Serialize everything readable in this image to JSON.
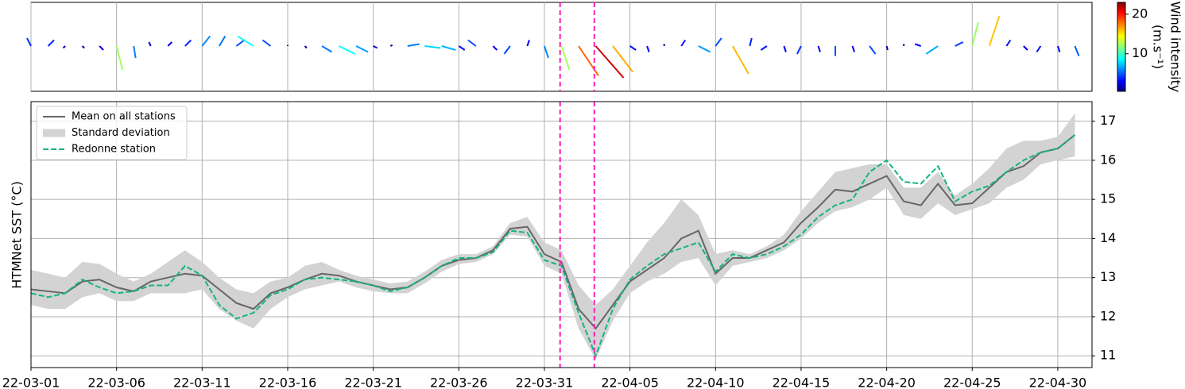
{
  "chart_data": [
    {
      "type": "quiver",
      "colorbar_label": [
        "Wind intensity",
        "(m.s⁻¹)"
      ],
      "colormap": "jet",
      "clim": [
        0.5,
        23
      ],
      "cticks": [
        10,
        20
      ],
      "xlim": [
        "22-03-01",
        "22-05-02"
      ],
      "grid": true,
      "x": [
        "22-03-01",
        "22-03-02",
        "22-03-03",
        "22-03-04",
        "22-03-05",
        "22-03-06",
        "22-03-07",
        "22-03-08",
        "22-03-09",
        "22-03-10",
        "22-03-11",
        "22-03-12",
        "22-03-13",
        "22-03-14",
        "22-03-15",
        "22-03-16",
        "22-03-17",
        "22-03-18",
        "22-03-19",
        "22-03-20",
        "22-03-21",
        "22-03-22",
        "22-03-23",
        "22-03-24",
        "22-03-25",
        "22-03-26",
        "22-03-27",
        "22-03-28",
        "22-03-29",
        "22-03-30",
        "22-03-31",
        "22-04-01",
        "22-04-02",
        "22-04-03",
        "22-04-04",
        "22-04-05",
        "22-04-06",
        "22-04-07",
        "22-04-08",
        "22-04-09",
        "22-04-10",
        "22-04-11",
        "22-04-12",
        "22-04-13",
        "22-04-14",
        "22-04-15",
        "22-04-16",
        "22-04-17",
        "22-04-18",
        "22-04-19",
        "22-04-20",
        "22-04-21",
        "22-04-22",
        "22-04-23",
        "22-04-24",
        "22-04-25",
        "22-04-26",
        "22-04-27",
        "22-04-28",
        "22-04-29",
        "22-04-30",
        "22-05-01"
      ],
      "u": [
        -2,
        3,
        -1,
        1,
        2,
        3,
        1,
        -1,
        2,
        3,
        4,
        3,
        4,
        -8,
        -4,
        0,
        1,
        5,
        8,
        6,
        2,
        1,
        6,
        8,
        7,
        3,
        -4,
        2,
        -3,
        1,
        2,
        4,
        10,
        14,
        10,
        3,
        1,
        0,
        2,
        6,
        3,
        8,
        1,
        -3,
        1,
        -2,
        1,
        0,
        1,
        3,
        0.5,
        0,
        -3,
        -6,
        4,
        3,
        5,
        2,
        2,
        -2,
        1,
        2
      ],
      "v": [
        4,
        3,
        -1,
        -1,
        -2,
        -12,
        -6,
        2,
        2,
        3,
        5,
        5,
        3,
        5,
        3,
        0.5,
        -1,
        -3,
        -4,
        -3,
        -1,
        0.5,
        1,
        -1,
        -2,
        -2,
        3,
        -2,
        -4,
        3,
        -6,
        -12,
        -15,
        -16,
        -13,
        -2,
        -3,
        1,
        3,
        -3,
        4,
        -14,
        4,
        -2,
        -3,
        -4,
        -3,
        -5,
        -3,
        -4,
        -2,
        1,
        1,
        -4,
        2,
        12,
        15,
        3,
        -2,
        -3,
        -3,
        -5
      ],
      "vlines": [
        "22-03-31 22:00",
        "22-04-02 22:00"
      ],
      "vline_color": "#ff1fb4"
    },
    {
      "type": "line",
      "ylabel": "HTMNet SST (°C)",
      "xlim": [
        "22-03-01",
        "22-05-02"
      ],
      "ylim": [
        10.7,
        17.5
      ],
      "xticks": [
        "22-03-01",
        "22-03-06",
        "22-03-11",
        "22-03-16",
        "22-03-21",
        "22-03-26",
        "22-03-31",
        "22-04-05",
        "22-04-10",
        "22-04-15",
        "22-04-20",
        "22-04-25",
        "22-04-30"
      ],
      "yticks": [
        11,
        12,
        13,
        14,
        15,
        16,
        17
      ],
      "grid": true,
      "legend": "upper left",
      "vlines": [
        "22-03-31 22:00",
        "22-04-02 22:00"
      ],
      "vline_color": "#ff1fb4",
      "x": [
        "22-03-01",
        "22-03-02",
        "22-03-03",
        "22-03-04",
        "22-03-05",
        "22-03-06",
        "22-03-07",
        "22-03-08",
        "22-03-09",
        "22-03-10",
        "22-03-11",
        "22-03-12",
        "22-03-13",
        "22-03-14",
        "22-03-15",
        "22-03-16",
        "22-03-17",
        "22-03-18",
        "22-03-19",
        "22-03-20",
        "22-03-21",
        "22-03-22",
        "22-03-23",
        "22-03-24",
        "22-03-25",
        "22-03-26",
        "22-03-27",
        "22-03-28",
        "22-03-29",
        "22-03-30",
        "22-03-31",
        "22-04-01",
        "22-04-02",
        "22-04-03",
        "22-04-04",
        "22-04-05",
        "22-04-06",
        "22-04-07",
        "22-04-08",
        "22-04-09",
        "22-04-10",
        "22-04-11",
        "22-04-12",
        "22-04-13",
        "22-04-14",
        "22-04-15",
        "22-04-16",
        "22-04-17",
        "22-04-18",
        "22-04-19",
        "22-04-20",
        "22-04-21",
        "22-04-22",
        "22-04-23",
        "22-04-24",
        "22-04-25",
        "22-04-26",
        "22-04-27",
        "22-04-28",
        "22-04-29",
        "22-04-30",
        "22-05-01"
      ],
      "series": [
        {
          "name": "Mean on all stations",
          "color": "#666666",
          "style": "solid",
          "values": [
            12.7,
            12.65,
            12.6,
            12.9,
            12.95,
            12.75,
            12.65,
            12.9,
            13.0,
            13.1,
            13.05,
            12.7,
            12.35,
            12.2,
            12.6,
            12.75,
            12.95,
            13.1,
            13.05,
            12.9,
            12.8,
            12.7,
            12.75,
            13.0,
            13.3,
            13.45,
            13.5,
            13.7,
            14.25,
            14.3,
            13.6,
            13.4,
            12.2,
            11.7,
            12.3,
            12.9,
            13.2,
            13.5,
            14.0,
            14.2,
            13.1,
            13.5,
            13.5,
            13.7,
            13.9,
            14.4,
            14.8,
            15.25,
            15.2,
            15.4,
            15.6,
            14.95,
            14.85,
            15.4,
            14.85,
            14.9,
            15.3,
            15.7,
            15.85,
            16.2,
            16.3,
            16.65
          ]
        },
        {
          "name": "Standard deviation",
          "color": "#d3d3d3",
          "style": "band",
          "upper": [
            13.2,
            13.1,
            13.0,
            13.4,
            13.35,
            13.1,
            12.9,
            13.1,
            13.4,
            13.7,
            13.4,
            13.0,
            12.7,
            12.6,
            12.9,
            13.0,
            13.3,
            13.4,
            13.2,
            13.05,
            12.95,
            12.85,
            12.9,
            13.15,
            13.45,
            13.6,
            13.6,
            13.8,
            14.4,
            14.55,
            13.9,
            13.7,
            12.8,
            12.3,
            12.7,
            13.3,
            13.9,
            14.4,
            15.0,
            14.6,
            13.6,
            13.7,
            13.6,
            13.8,
            14.1,
            14.7,
            15.2,
            15.7,
            15.8,
            15.9,
            15.9,
            15.3,
            15.3,
            15.7,
            15.1,
            15.4,
            15.8,
            16.3,
            16.5,
            16.5,
            16.6,
            17.2
          ],
          "lower": [
            12.3,
            12.2,
            12.2,
            12.5,
            12.6,
            12.4,
            12.4,
            12.6,
            12.6,
            12.6,
            12.7,
            12.2,
            11.9,
            11.7,
            12.2,
            12.5,
            12.7,
            12.8,
            12.9,
            12.75,
            12.65,
            12.6,
            12.6,
            12.85,
            13.15,
            13.35,
            13.4,
            13.6,
            14.1,
            14.05,
            13.3,
            13.1,
            11.7,
            10.9,
            11.9,
            12.6,
            12.9,
            13.1,
            13.4,
            13.5,
            12.8,
            13.3,
            13.4,
            13.5,
            13.7,
            14.0,
            14.4,
            14.7,
            14.8,
            15.0,
            15.3,
            14.6,
            14.5,
            14.9,
            14.6,
            14.75,
            14.9,
            15.3,
            15.5,
            15.9,
            16.0,
            16.1
          ]
        },
        {
          "name": "Redonne station",
          "color": "#13b386",
          "style": "dashed",
          "values": [
            12.6,
            12.5,
            12.6,
            12.95,
            12.75,
            12.6,
            12.65,
            12.8,
            12.8,
            13.3,
            13.05,
            12.3,
            11.95,
            12.1,
            12.55,
            12.7,
            12.95,
            13.0,
            12.95,
            12.9,
            12.8,
            12.65,
            12.75,
            13.0,
            13.3,
            13.5,
            13.5,
            13.65,
            14.2,
            14.15,
            13.45,
            13.3,
            12.1,
            11.0,
            12.2,
            12.95,
            13.3,
            13.6,
            13.75,
            13.9,
            13.15,
            13.6,
            13.5,
            13.6,
            13.8,
            14.1,
            14.55,
            14.85,
            15.0,
            15.7,
            16.0,
            15.45,
            15.4,
            15.85,
            14.95,
            15.2,
            15.35,
            15.7,
            16.0,
            16.2,
            16.3,
            16.65
          ]
        }
      ]
    }
  ]
}
